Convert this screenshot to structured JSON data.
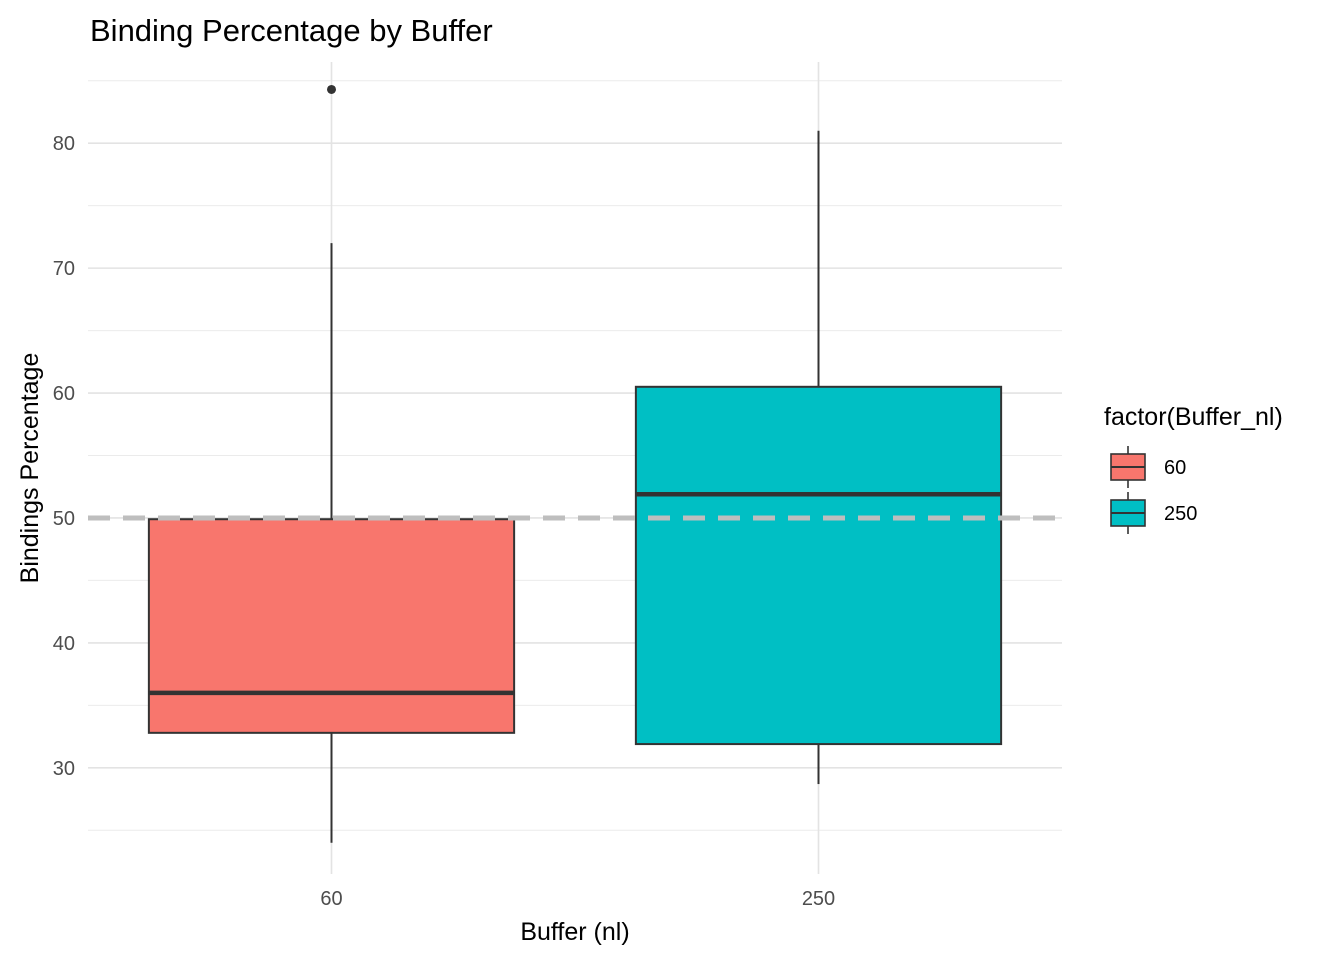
{
  "chart_data": {
    "type": "box",
    "title": "Binding Percentage by Buffer",
    "xlabel": "Buffer (nl)",
    "ylabel": "Bindings Percentage",
    "categories": [
      "60",
      "250"
    ],
    "yticks": [
      30,
      40,
      50,
      60,
      70,
      80
    ],
    "ylim": [
      21.5,
      86.5
    ],
    "grid": true,
    "reference_line": {
      "y": 50,
      "style": "dashed",
      "color": "#bebebe"
    },
    "legend": {
      "title": "factor(Buffer_nl)",
      "position": "right",
      "entries": [
        {
          "label": "60",
          "color": "#F8766D"
        },
        {
          "label": "250",
          "color": "#00BFC4"
        }
      ]
    },
    "boxes": [
      {
        "category": "60",
        "color": "#F8766D",
        "whisker_low": 24,
        "q1": 32.8,
        "median": 36,
        "q3": 49.9,
        "whisker_high": 72,
        "outliers": [
          84.3
        ]
      },
      {
        "category": "250",
        "color": "#00BFC4",
        "whisker_low": 28.7,
        "q1": 31.9,
        "median": 51.9,
        "q3": 60.5,
        "whisker_high": 81,
        "outliers": []
      }
    ]
  }
}
